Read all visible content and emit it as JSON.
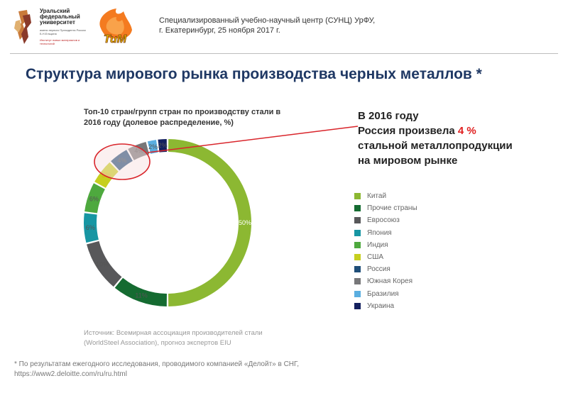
{
  "header": {
    "logo_university": [
      "Уральский",
      "федеральный",
      "университет"
    ],
    "logo_university_sub": "имени первого Президента России Б.Н.Ельцина",
    "logo_university_institute": "Институт новых материалов и технологий",
    "logo_tim": "ТиМ",
    "line1": "Специализированный учебно-научный центр (СУНЦ) УрФУ,",
    "line2": "г. Екатеринбург, 25 ноября 2017 г."
  },
  "title": "Структура мирового рынка производства черных металлов *",
  "highlight": {
    "line1": "В 2016 году",
    "line2_before": "Россия произвела ",
    "line2_value": "4 %",
    "line3": "стальной металлопродукции",
    "line4": "на мировом рынке"
  },
  "chart_data": {
    "type": "pie",
    "variant": "donut",
    "title": "Топ-10 стран/групп стран по производству стали в 2016 году (долевое распределение, %)",
    "categories": [
      "Китай",
      "Прочие страны",
      "Евросоюз",
      "Япония",
      "Индия",
      "США",
      "Россия",
      "Южная Корея",
      "Бразилия",
      "Украина"
    ],
    "values": [
      50,
      11,
      10,
      6,
      6,
      5,
      4,
      4,
      2,
      2
    ],
    "value_labels": [
      "50%",
      "11%",
      "10%",
      "6%",
      "6%",
      "5%",
      "4%",
      "4%",
      "2%",
      "2%"
    ],
    "colors": [
      "#8cb832",
      "#156b31",
      "#58585a",
      "#1796a3",
      "#4ea93e",
      "#c6cf1f",
      "#1f4e78",
      "#777779",
      "#5aaee0",
      "#14205f"
    ],
    "label_colors": [
      "#ffffff",
      "#555555",
      "#555555",
      "#555555",
      "#555555",
      "#e0a020",
      "#555555",
      "#555555",
      "#555555",
      "#555555"
    ],
    "legend_position": "right",
    "highlighted": "Россия"
  },
  "source": "Источник: Всемирная ассоциация производителей стали (WorldSteel Association), прогноз экспертов EIU",
  "footnote": "* По результатам ежегодного исследования, проводимого компанией «Делойт» в СНГ, https://www2.deloitte.com/ru/ru.html"
}
